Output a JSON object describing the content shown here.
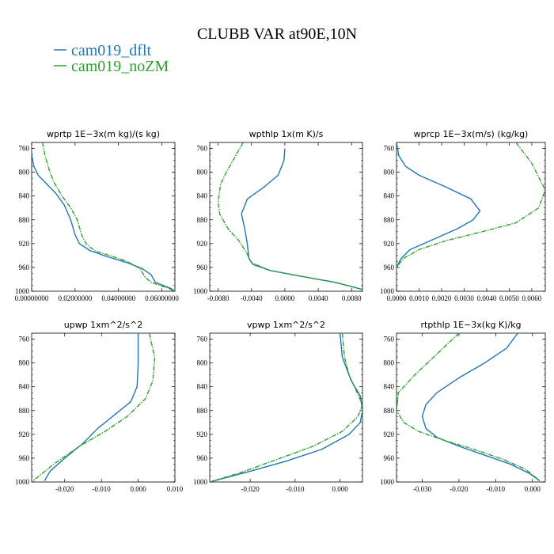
{
  "figure": {
    "title": "CLUBB VAR at90E,10N"
  },
  "legend": [
    {
      "label": "cam019_dflt",
      "color": "#1f77b4"
    },
    {
      "label": "cam019_noZM",
      "color": "#2ca02c"
    }
  ],
  "chart_data": [
    {
      "type": "line",
      "title": "wprtp  1E−3x(m kg)/(s kg)",
      "xlim": [
        0.0,
        0.066
      ],
      "ylim": [
        1000,
        750
      ],
      "x_ticks": [
        0.0,
        0.02,
        0.04,
        0.06
      ],
      "x_tick_labels": [
        "0.00000000",
        "0.02000000",
        "0.04000000",
        "0.06000000"
      ],
      "y_ticks": [
        760,
        800,
        840,
        880,
        920,
        960,
        1000
      ],
      "series": [
        {
          "name": "cam019_dflt",
          "color": "#1f77b4",
          "points": [
            [
              0.0,
              770
            ],
            [
              0.001,
              790
            ],
            [
              0.003,
              805
            ],
            [
              0.007,
              820
            ],
            [
              0.011,
              835
            ],
            [
              0.015,
              855
            ],
            [
              0.018,
              880
            ],
            [
              0.02,
              905
            ],
            [
              0.022,
              920
            ],
            [
              0.027,
              932
            ],
            [
              0.035,
              942
            ],
            [
              0.044,
              952
            ],
            [
              0.051,
              962
            ],
            [
              0.055,
              972
            ],
            [
              0.057,
              985
            ],
            [
              0.064,
              995
            ],
            [
              0.066,
              1000
            ]
          ]
        },
        {
          "name": "cam019_noZM",
          "color": "#2ca02c",
          "points": [
            [
              0.005,
              750
            ],
            [
              0.006,
              770
            ],
            [
              0.008,
              795
            ],
            [
              0.01,
              815
            ],
            [
              0.014,
              840
            ],
            [
              0.018,
              860
            ],
            [
              0.021,
              880
            ],
            [
              0.023,
              905
            ],
            [
              0.025,
              920
            ],
            [
              0.029,
              932
            ],
            [
              0.036,
              940
            ],
            [
              0.044,
              950
            ],
            [
              0.05,
              962
            ],
            [
              0.052,
              975
            ],
            [
              0.055,
              985
            ],
            [
              0.063,
              995
            ],
            [
              0.066,
              1000
            ]
          ]
        }
      ]
    },
    {
      "type": "line",
      "title": "wpthlp  1x(m K)/s",
      "xlim": [
        -0.009,
        0.0093
      ],
      "ylim": [
        1000,
        750
      ],
      "x_ticks": [
        -0.008,
        -0.004,
        0.0,
        0.004,
        0.008
      ],
      "x_tick_labels": [
        "-0.0080",
        "-0.0040",
        "0.0000",
        "0.0040",
        "0.0080"
      ],
      "y_ticks": [
        760,
        800,
        840,
        880,
        920,
        960,
        1000
      ],
      "series": [
        {
          "name": "cam019_dflt",
          "color": "#1f77b4",
          "points": [
            [
              0.0,
              760
            ],
            [
              -0.0001,
              780
            ],
            [
              -0.0008,
              805
            ],
            [
              -0.0025,
              825
            ],
            [
              -0.0045,
              845
            ],
            [
              -0.0052,
              870
            ],
            [
              -0.0048,
              895
            ],
            [
              -0.0045,
              920
            ],
            [
              -0.0043,
              945
            ],
            [
              -0.0038,
              955
            ],
            [
              -0.0018,
              965
            ],
            [
              0.002,
              975
            ],
            [
              0.006,
              985
            ],
            [
              0.0093,
              997
            ]
          ]
        },
        {
          "name": "cam019_noZM",
          "color": "#2ca02c",
          "points": [
            [
              -0.005,
              750
            ],
            [
              -0.006,
              775
            ],
            [
              -0.007,
              800
            ],
            [
              -0.0077,
              820
            ],
            [
              -0.008,
              850
            ],
            [
              -0.0078,
              870
            ],
            [
              -0.0068,
              895
            ],
            [
              -0.0055,
              915
            ],
            [
              -0.0046,
              935
            ],
            [
              -0.004,
              952
            ],
            [
              -0.0018,
              965
            ],
            [
              0.002,
              975
            ],
            [
              0.006,
              985
            ],
            [
              0.0093,
              997
            ]
          ]
        }
      ]
    },
    {
      "type": "line",
      "title": "wprcp  1E−3x(m/s) (kg/kg)",
      "xlim": [
        0.0,
        0.0066
      ],
      "ylim": [
        1000,
        750
      ],
      "x_ticks": [
        0.0,
        0.001,
        0.002,
        0.003,
        0.004,
        0.005,
        0.006
      ],
      "x_tick_labels": [
        "0.0000",
        "0.0010",
        "0.0020",
        "0.0030",
        "0.0040",
        "0.0050",
        "0.0060"
      ],
      "y_ticks": [
        760,
        800,
        840,
        880,
        920,
        960,
        1000
      ],
      "series": [
        {
          "name": "cam019_dflt",
          "color": "#1f77b4",
          "points": [
            [
              0.0,
              750
            ],
            [
              0.0001,
              772
            ],
            [
              0.0004,
              790
            ],
            [
              0.001,
              805
            ],
            [
              0.0022,
              825
            ],
            [
              0.0033,
              845
            ],
            [
              0.0037,
              865
            ],
            [
              0.0034,
              880
            ],
            [
              0.0027,
              895
            ],
            [
              0.0015,
              915
            ],
            [
              0.0006,
              930
            ],
            [
              0.0002,
              945
            ],
            [
              0.0,
              960
            ]
          ]
        },
        {
          "name": "cam019_noZM",
          "color": "#2ca02c",
          "points": [
            [
              0.0053,
              750
            ],
            [
              0.006,
              785
            ],
            [
              0.0066,
              830
            ],
            [
              0.0063,
              860
            ],
            [
              0.0053,
              885
            ],
            [
              0.0038,
              900
            ],
            [
              0.0022,
              915
            ],
            [
              0.001,
              930
            ],
            [
              0.0003,
              945
            ],
            [
              0.0,
              960
            ]
          ]
        }
      ]
    },
    {
      "type": "line",
      "title": "upwp  1xm^2/s^2",
      "xlim": [
        -0.029,
        0.01
      ],
      "ylim": [
        1000,
        750
      ],
      "x_ticks": [
        -0.02,
        -0.01,
        0.0,
        0.01
      ],
      "x_tick_labels": [
        "-0.020",
        "-0.010",
        "0.000",
        "0.010"
      ],
      "y_ticks": [
        760,
        800,
        840,
        880,
        920,
        960,
        1000
      ],
      "series": [
        {
          "name": "cam019_dflt",
          "color": "#1f77b4",
          "points": [
            [
              0.0,
              750
            ],
            [
              0.0,
              800
            ],
            [
              -0.0003,
              840
            ],
            [
              -0.002,
              865
            ],
            [
              -0.006,
              885
            ],
            [
              -0.011,
              910
            ],
            [
              -0.015,
              935
            ],
            [
              -0.02,
              960
            ],
            [
              -0.024,
              982
            ],
            [
              -0.0255,
              998
            ]
          ]
        },
        {
          "name": "cam019_noZM",
          "color": "#2ca02c",
          "points": [
            [
              0.003,
              750
            ],
            [
              0.0045,
              790
            ],
            [
              0.004,
              830
            ],
            [
              0.002,
              860
            ],
            [
              -0.003,
              890
            ],
            [
              -0.009,
              915
            ],
            [
              -0.016,
              940
            ],
            [
              -0.023,
              970
            ],
            [
              -0.029,
              1000
            ]
          ]
        }
      ]
    },
    {
      "type": "line",
      "title": "vpwp  1xm^2/s^2",
      "xlim": [
        -0.029,
        0.005
      ],
      "ylim": [
        1000,
        750
      ],
      "x_ticks": [
        -0.02,
        -0.01,
        0.0
      ],
      "x_tick_labels": [
        "-0.020",
        "-0.010",
        "0.000"
      ],
      "y_ticks": [
        760,
        800,
        840,
        880,
        920,
        960,
        1000
      ],
      "series": [
        {
          "name": "cam019_dflt",
          "color": "#1f77b4",
          "points": [
            [
              0.0,
              750
            ],
            [
              0.0005,
              790
            ],
            [
              0.0025,
              830
            ],
            [
              0.0045,
              855
            ],
            [
              0.005,
              880
            ],
            [
              0.0045,
              900
            ],
            [
              0.002,
              920
            ],
            [
              -0.004,
              945
            ],
            [
              -0.012,
              965
            ],
            [
              -0.02,
              982
            ],
            [
              -0.029,
              1000
            ]
          ]
        },
        {
          "name": "cam019_noZM",
          "color": "#2ca02c",
          "points": [
            [
              0.0005,
              750
            ],
            [
              0.001,
              790
            ],
            [
              0.002,
              820
            ],
            [
              0.0035,
              845
            ],
            [
              0.005,
              870
            ],
            [
              0.004,
              890
            ],
            [
              0.0005,
              915
            ],
            [
              -0.006,
              940
            ],
            [
              -0.014,
              962
            ],
            [
              -0.022,
              984
            ],
            [
              -0.029,
              1000
            ]
          ]
        }
      ]
    },
    {
      "type": "line",
      "title": "rtpthlp  1E−3x(kg K)/kg",
      "xlim": [
        -0.037,
        0.0035
      ],
      "ylim": [
        1000,
        750
      ],
      "x_ticks": [
        -0.03,
        -0.02,
        -0.01,
        0.0
      ],
      "x_tick_labels": [
        "-0.030",
        "-0.020",
        "-0.010",
        "0.000"
      ],
      "y_ticks": [
        760,
        800,
        840,
        880,
        920,
        960,
        1000
      ],
      "series": [
        {
          "name": "cam019_dflt",
          "color": "#1f77b4",
          "points": [
            [
              -0.004,
              750
            ],
            [
              -0.007,
              775
            ],
            [
              -0.013,
              800
            ],
            [
              -0.02,
              825
            ],
            [
              -0.026,
              850
            ],
            [
              -0.029,
              870
            ],
            [
              -0.03,
              890
            ],
            [
              -0.029,
              910
            ],
            [
              -0.026,
              925
            ],
            [
              -0.02,
              940
            ],
            [
              -0.013,
              955
            ],
            [
              -0.006,
              970
            ],
            [
              -0.001,
              985
            ],
            [
              0.002,
              998
            ]
          ]
        },
        {
          "name": "cam019_noZM",
          "color": "#2ca02c",
          "points": [
            [
              -0.02,
              750
            ],
            [
              -0.026,
              785
            ],
            [
              -0.032,
              820
            ],
            [
              -0.0365,
              850
            ],
            [
              -0.037,
              880
            ],
            [
              -0.035,
              900
            ],
            [
              -0.031,
              915
            ],
            [
              -0.024,
              930
            ],
            [
              -0.016,
              945
            ],
            [
              -0.008,
              962
            ],
            [
              -0.002,
              978
            ],
            [
              0.002,
              998
            ]
          ]
        }
      ]
    }
  ]
}
